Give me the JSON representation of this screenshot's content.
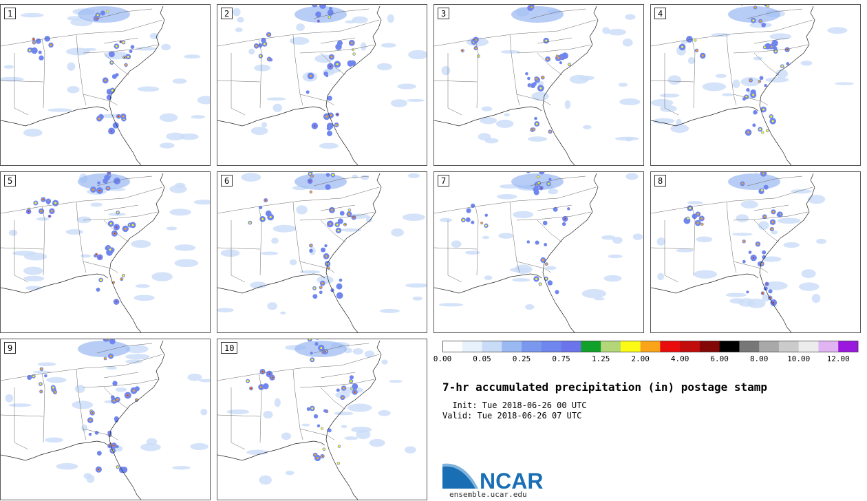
{
  "panels": [
    "1",
    "2",
    "3",
    "4",
    "5",
    "6",
    "7",
    "8",
    "9",
    "10"
  ],
  "colorbar": {
    "colors": [
      "#ffffff",
      "#e8f2fc",
      "#c9dcf7",
      "#9ab8f2",
      "#7b98ef",
      "#6f86ee",
      "#6c74ec",
      "#11a02a",
      "#b2d678",
      "#fbfb16",
      "#f9a419",
      "#e90c0c",
      "#c20b0b",
      "#840707",
      "#000000",
      "#777777",
      "#a9a9a9",
      "#cbcbcb",
      "#ececec",
      "#e0b4f3",
      "#9a18dd"
    ],
    "tick_labels": [
      "0.00",
      "0.05",
      "0.25",
      "0.75",
      "1.25",
      "2.00",
      "4.00",
      "6.00",
      "8.00",
      "10.00",
      "12.00"
    ]
  },
  "title": "7-hr accumulated precipitation (in) postage stamp",
  "init": "  Init: Tue 2018-06-26 00 UTC",
  "valid": "Valid: Tue 2018-06-26 07 UTC",
  "logo": {
    "text": "NCAR",
    "url": "ensemble.ucar.edu",
    "color": "#1a6fb4"
  }
}
